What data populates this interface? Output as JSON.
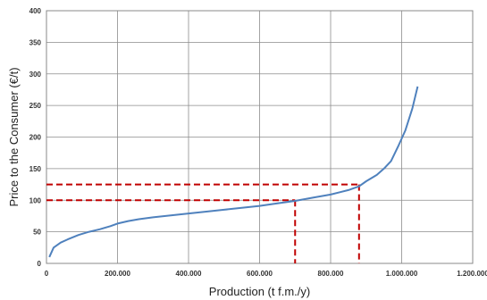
{
  "chart_data": {
    "type": "line",
    "title": "",
    "xlabel": "Production (t f.m./y)",
    "ylabel": "Price to the Consumer (€/t)",
    "xlim": [
      0,
      1200000
    ],
    "ylim": [
      0,
      400
    ],
    "x_ticks": [
      0,
      200000,
      400000,
      600000,
      800000,
      1000000,
      1200000
    ],
    "x_tick_labels": [
      "0",
      "200.000",
      "400.000",
      "600.000",
      "800.000",
      "1.000.000",
      "1.200.000"
    ],
    "y_ticks": [
      0,
      50,
      100,
      150,
      200,
      250,
      300,
      350,
      400
    ],
    "y_tick_labels": [
      "0",
      "50",
      "100",
      "150",
      "200",
      "250",
      "300",
      "350",
      "400"
    ],
    "grid": true,
    "series": [
      {
        "color": "#4f81bd",
        "x": [
          8000,
          20000,
          40000,
          60000,
          90000,
          120000,
          150000,
          180000,
          200000,
          230000,
          260000,
          300000,
          350000,
          400000,
          450000,
          500000,
          550000,
          600000,
          650000,
          700000,
          750000,
          800000,
          850000,
          880000,
          900000,
          930000,
          950000,
          970000,
          990000,
          1010000,
          1030000,
          1045000
        ],
        "y": [
          10,
          25,
          33,
          38,
          45,
          50,
          54,
          59,
          63,
          67,
          70,
          73,
          76,
          79,
          82,
          85,
          88,
          91,
          95,
          99,
          104,
          109,
          116,
          122,
          130,
          140,
          150,
          162,
          185,
          210,
          245,
          280
        ]
      }
    ],
    "reference_lines": {
      "color": "#c00000",
      "style": "dashed",
      "points": [
        {
          "x": 700000,
          "y": 100
        },
        {
          "x": 880000,
          "y": 125
        }
      ]
    }
  }
}
